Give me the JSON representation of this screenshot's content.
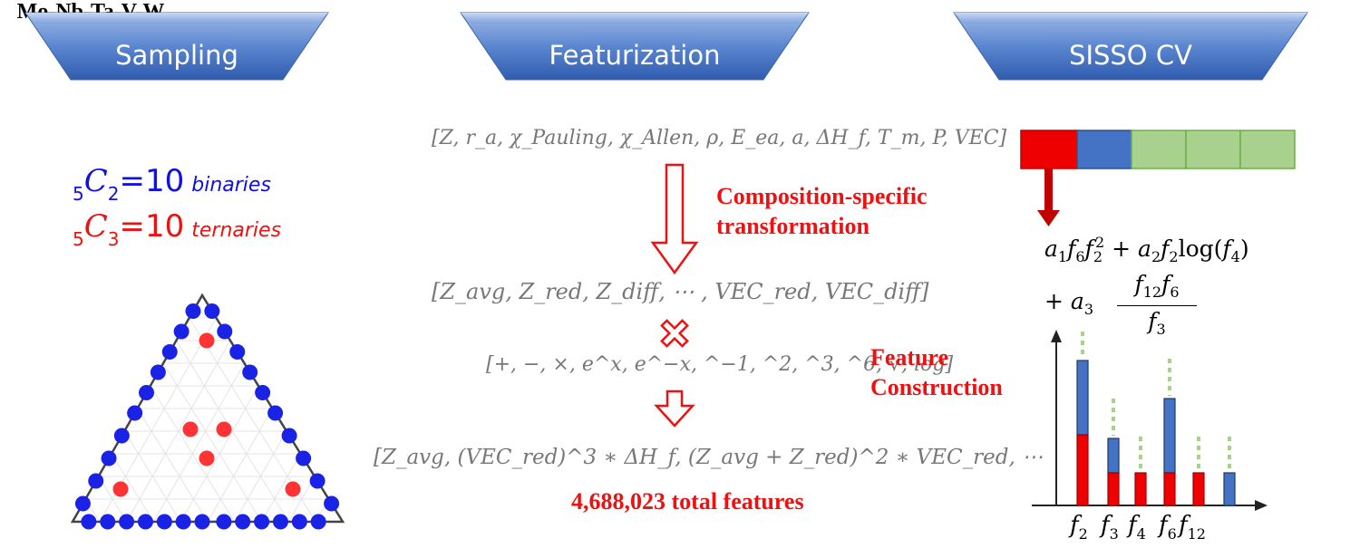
{
  "banners": {
    "sampling": "Sampling",
    "featurization": "Featurization",
    "sisso": "SISSO CV"
  },
  "sampling": {
    "alloy_system": "Mo-Nb-Ta-V-W",
    "binaries": {
      "prefix": "5",
      "symbol": "C",
      "index": "2",
      "value": "=10",
      "label": "binaries"
    },
    "ternaries": {
      "prefix": "5",
      "symbol": "C",
      "index": "3",
      "value": "=10",
      "label": "ternaries"
    }
  },
  "featurization": {
    "primary_features": "[Z, r_a, χ_Pauling, χ_Allen, ρ, E_ea, a, ΔH_f, T_m, P, VEC]",
    "transform_label_1": "Composition-specific",
    "transform_label_2": "transformation",
    "transformed_features": "[Z_avg, Z_red, Z_diff, ⋯ , VEC_red, VEC_diff]",
    "operators": "[+, −, ×, e^x, e^−x, ^−1, ^2, ^3, ^6, √, log]",
    "construction_label_1": "Feature",
    "construction_label_2": "Construction",
    "constructed_features": "[Z_avg, (VEC_red)^3 ∗ ΔH_f, (Z_avg + Z_red)^2 ∗ VEC_red, ⋯",
    "total_features": "4,688,023 total features"
  },
  "sisso": {
    "equation_line1": "a1 f6 f2^2 + a2 f2 log(f4)",
    "equation_line2": "+ a3 f12 f6 / f3",
    "feature_labels": [
      "f2",
      "f3",
      "f4",
      "f6",
      "f12"
    ],
    "colors": {
      "red": "#ee0000",
      "blue": "#4472c4",
      "green": "#a9d18e",
      "green_border": "#70ad47",
      "banner": "#4472c4"
    }
  }
}
